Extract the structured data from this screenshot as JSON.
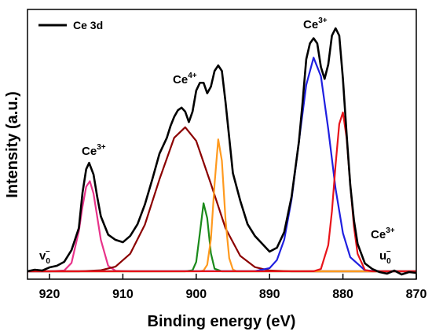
{
  "chart_data": {
    "type": "line",
    "xlabel": "Binding energy (eV)",
    "ylabel": "Intensity (a.u.)",
    "xlim": [
      923,
      870
    ],
    "xticks": [
      920,
      910,
      900,
      890,
      880,
      870
    ],
    "ylim": [
      -3,
      100
    ],
    "legend": "upper left",
    "series": [
      {
        "name": "Ce 3d",
        "color": "#000000",
        "x": [
          923,
          922,
          921,
          920,
          919,
          918,
          917,
          916,
          915.5,
          915,
          914.6,
          914,
          913.5,
          913,
          912,
          911,
          910,
          909,
          908,
          907,
          906,
          905,
          904,
          903.5,
          903,
          902.5,
          902,
          901.5,
          901,
          900.5,
          900,
          899.5,
          899,
          898.5,
          898,
          897.5,
          897,
          896.5,
          896,
          895.5,
          895,
          894,
          893,
          892,
          891,
          890,
          889,
          888,
          887,
          886,
          885.5,
          885,
          884.5,
          884,
          883.5,
          883,
          882.5,
          882,
          881.5,
          881,
          880.5,
          880,
          879.5,
          879,
          878.5,
          878,
          877,
          876,
          875,
          874,
          873,
          872,
          871,
          870
        ],
        "values": [
          0,
          0.6,
          0.3,
          1.5,
          2.1,
          3.6,
          8.1,
          16.5,
          30,
          39,
          41.4,
          37,
          28.5,
          21,
          14,
          12,
          11.1,
          13.5,
          18,
          25.5,
          35,
          45,
          51,
          55.5,
          59,
          61.5,
          62.5,
          61,
          57,
          61,
          69,
          72,
          72,
          68,
          70.5,
          76.5,
          78.6,
          76.5,
          64.5,
          51,
          37.5,
          27,
          18,
          13.5,
          10.5,
          7.5,
          9,
          15,
          28.5,
          49.5,
          64.5,
          81,
          87,
          89,
          87,
          78,
          73.5,
          79,
          90,
          92.8,
          90,
          73.5,
          52.5,
          33,
          19.5,
          10.5,
          3,
          0.9,
          -0.3,
          -0.9,
          0.3,
          -1.2,
          -0.3,
          -0.6
        ]
      },
      {
        "color": "#e8338a",
        "x": [
          923,
          920,
          918,
          917,
          916,
          915.5,
          915,
          914.5,
          914,
          913.5,
          913,
          912,
          911,
          909,
          870
        ],
        "values": [
          0,
          0,
          0.3,
          3.2,
          15.3,
          24.7,
          32.3,
          34.4,
          29.7,
          20.9,
          12,
          2.1,
          0.2,
          0,
          0
        ]
      },
      {
        "color": "#8b0000",
        "x": [
          923,
          916,
          913,
          911,
          909,
          907,
          905,
          903,
          901.5,
          900,
          898,
          896,
          894,
          892,
          890,
          887,
          870
        ],
        "values": [
          0,
          0,
          0.4,
          1.8,
          6.7,
          17.8,
          35.2,
          51,
          55,
          49.8,
          33.4,
          16.4,
          5.9,
          1.6,
          0.3,
          0,
          0
        ]
      },
      {
        "color": "#1a8a1a",
        "x": [
          923,
          901.5,
          900.5,
          900,
          899.5,
          899,
          898.5,
          898,
          897.5,
          896.5,
          870
        ],
        "values": [
          0,
          0,
          0.4,
          3.6,
          14.6,
          26,
          20.3,
          6.9,
          1,
          0,
          0
        ]
      },
      {
        "color": "#ff9a1f",
        "x": [
          923,
          899.5,
          899,
          898.5,
          898,
          897.5,
          897,
          896.5,
          896,
          895.5,
          895,
          894.5,
          870
        ],
        "values": [
          0,
          0,
          0.3,
          2.5,
          12.2,
          33.3,
          50.4,
          42.2,
          19.5,
          5,
          0.7,
          0,
          0
        ]
      },
      {
        "color": "#1f1fe0",
        "x": [
          923,
          892,
          890,
          889,
          888,
          887,
          886,
          885,
          884,
          883,
          882,
          881,
          880,
          879,
          877,
          875,
          870
        ],
        "values": [
          0,
          0.05,
          1.2,
          4.3,
          12.1,
          27.5,
          49.6,
          71.2,
          81.6,
          74.5,
          54.3,
          31.5,
          14.6,
          5.4,
          0.4,
          0,
          0
        ]
      },
      {
        "color": "#e8141a",
        "x": [
          923,
          884,
          883,
          882,
          881.5,
          881,
          880.5,
          880,
          879.5,
          879,
          878.5,
          878,
          877,
          876,
          870
        ],
        "values": [
          0,
          0.03,
          0.9,
          10,
          22.9,
          40.7,
          56.3,
          60.7,
          51,
          33.3,
          17,
          6.7,
          0.5,
          0,
          0
        ]
      }
    ],
    "annotations": [
      {
        "text": "Ce",
        "superscript": "3+"
      },
      {
        "text": "Ce",
        "superscript": "4+"
      },
      {
        "text": "Ce",
        "superscript": "3+"
      },
      {
        "text": "Ce",
        "superscript": "3+"
      },
      {
        "text": "v",
        "subscript": "0",
        "superscript": "−"
      },
      {
        "text": "u",
        "subscript": "0",
        "superscript": "−"
      }
    ]
  }
}
